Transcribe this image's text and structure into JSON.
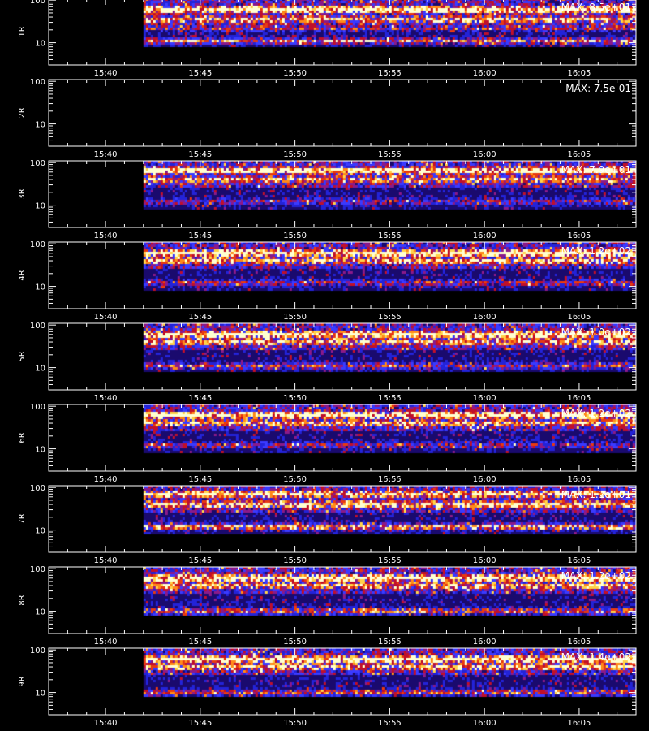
{
  "chart_data": {
    "type": "heatmap",
    "colors": {
      "background": "#000000",
      "axis": "#ffffff",
      "colormap": [
        "#000000",
        "#1a0a6e",
        "#2323d8",
        "#3a3aff",
        "#8a1a8a",
        "#c0102a",
        "#e83a10",
        "#ff8a1a",
        "#ffd24a",
        "#ffffd0"
      ]
    },
    "x_axis": {
      "start": "15:37",
      "end": "16:08",
      "data_start": "15:42",
      "tick_labels": [
        "15:40",
        "15:45",
        "15:50",
        "15:55",
        "16:00",
        "16:05"
      ],
      "tick_values": [
        "15:40",
        "15:45",
        "15:50",
        "15:55",
        "16:00",
        "16:05"
      ]
    },
    "y_axis": {
      "scale": "log",
      "ylim": [
        3,
        110
      ],
      "tick_labels": [
        "100",
        "10"
      ],
      "tick_values": [
        100,
        10
      ]
    },
    "bottom_title": "",
    "panels": [
      {
        "label": "1R",
        "max_label": "MAX: 8.5e+01",
        "max": 85,
        "bands": [
          [
            60,
            1.0
          ],
          [
            35,
            0.55
          ],
          [
            22,
            0.45
          ],
          [
            11,
            0.65
          ]
        ]
      },
      {
        "label": "2R",
        "max_label": "MAX: 7.5e-01",
        "max": 0.75,
        "bands": []
      },
      {
        "label": "3R",
        "max_label": "MAX: 7.9e+01",
        "max": 79,
        "bands": [
          [
            65,
            1.0
          ],
          [
            40,
            0.5
          ],
          [
            12,
            0.35
          ]
        ]
      },
      {
        "label": "4R",
        "max_label": "MAX: 1.2e+02",
        "max": 120,
        "bands": [
          [
            60,
            1.0
          ],
          [
            40,
            0.6
          ],
          [
            12,
            0.4
          ]
        ]
      },
      {
        "label": "5R",
        "max_label": "MAX: 1.0e+02",
        "max": 100,
        "bands": [
          [
            60,
            1.0
          ],
          [
            40,
            0.55
          ],
          [
            11,
            0.45
          ]
        ]
      },
      {
        "label": "6R",
        "max_label": "MAX: 1.2e+02",
        "max": 120,
        "bands": [
          [
            62,
            1.0
          ],
          [
            40,
            0.55
          ],
          [
            12,
            0.35
          ]
        ]
      },
      {
        "label": "7R",
        "max_label": "MAX: 1.2e+01",
        "max": 12,
        "bands": [
          [
            70,
            0.8
          ],
          [
            40,
            0.7
          ],
          [
            12,
            0.8
          ]
        ]
      },
      {
        "label": "8R",
        "max_label": "MAX: 1.2e+02",
        "max": 120,
        "bands": [
          [
            60,
            1.0
          ],
          [
            40,
            0.55
          ],
          [
            10,
            0.6
          ]
        ]
      },
      {
        "label": "9R",
        "max_label": "MAX: 1.4e+02",
        "max": 140,
        "bands": [
          [
            60,
            1.0
          ],
          [
            40,
            0.55
          ],
          [
            10,
            0.55
          ]
        ]
      }
    ]
  }
}
